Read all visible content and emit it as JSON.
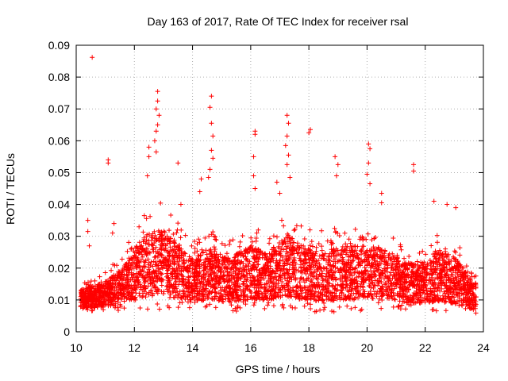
{
  "chart_data": {
    "type": "scatter",
    "title": "Day 163 of 2017, Rate Of TEC Index for receiver rsal",
    "xlabel": "GPS time / hours",
    "ylabel": "ROTI / TECUs",
    "xlim": [
      10,
      24
    ],
    "ylim": [
      0,
      0.09
    ],
    "xticks": [
      10,
      12,
      14,
      16,
      18,
      20,
      22,
      24
    ],
    "xtick_labels": [
      "10",
      "12",
      "14",
      "16",
      "18",
      "20",
      "22",
      "24"
    ],
    "yticks": [
      0,
      0.01,
      0.02,
      0.03,
      0.04,
      0.05,
      0.06,
      0.07,
      0.08,
      0.09
    ],
    "ytick_labels": [
      "0",
      "0.01",
      "0.02",
      "0.03",
      "0.04",
      "0.05",
      "0.06",
      "0.07",
      "0.08",
      "0.09"
    ],
    "grid": true,
    "marker": "+",
    "color": "#ff0000",
    "notable_points": [
      {
        "x": 10.55,
        "y": 0.0862
      },
      {
        "x": 10.4,
        "y": 0.035
      },
      {
        "x": 10.4,
        "y": 0.0315
      },
      {
        "x": 10.45,
        "y": 0.027
      },
      {
        "x": 11.1,
        "y": 0.054
      },
      {
        "x": 11.1,
        "y": 0.053
      },
      {
        "x": 11.3,
        "y": 0.034
      },
      {
        "x": 11.25,
        "y": 0.031
      },
      {
        "x": 12.5,
        "y": 0.058
      },
      {
        "x": 12.5,
        "y": 0.055
      },
      {
        "x": 12.45,
        "y": 0.049
      },
      {
        "x": 12.8,
        "y": 0.0755
      },
      {
        "x": 12.8,
        "y": 0.0725
      },
      {
        "x": 12.75,
        "y": 0.07
      },
      {
        "x": 12.85,
        "y": 0.068
      },
      {
        "x": 12.8,
        "y": 0.065
      },
      {
        "x": 12.75,
        "y": 0.063
      },
      {
        "x": 12.7,
        "y": 0.06
      },
      {
        "x": 12.75,
        "y": 0.0565
      },
      {
        "x": 13.5,
        "y": 0.053
      },
      {
        "x": 13.6,
        "y": 0.04
      },
      {
        "x": 14.3,
        "y": 0.048
      },
      {
        "x": 14.25,
        "y": 0.044
      },
      {
        "x": 14.65,
        "y": 0.074
      },
      {
        "x": 14.6,
        "y": 0.0705
      },
      {
        "x": 14.65,
        "y": 0.0655
      },
      {
        "x": 14.7,
        "y": 0.0615
      },
      {
        "x": 14.65,
        "y": 0.057
      },
      {
        "x": 14.7,
        "y": 0.0545
      },
      {
        "x": 14.6,
        "y": 0.051
      },
      {
        "x": 14.55,
        "y": 0.0485
      },
      {
        "x": 16.15,
        "y": 0.063
      },
      {
        "x": 16.15,
        "y": 0.062
      },
      {
        "x": 16.1,
        "y": 0.055
      },
      {
        "x": 16.1,
        "y": 0.049
      },
      {
        "x": 16.15,
        "y": 0.045
      },
      {
        "x": 16.9,
        "y": 0.047
      },
      {
        "x": 17.0,
        "y": 0.0435
      },
      {
        "x": 17.25,
        "y": 0.068
      },
      {
        "x": 17.3,
        "y": 0.0655
      },
      {
        "x": 17.25,
        "y": 0.0615
      },
      {
        "x": 17.2,
        "y": 0.0585
      },
      {
        "x": 17.3,
        "y": 0.0555
      },
      {
        "x": 17.25,
        "y": 0.0525
      },
      {
        "x": 17.35,
        "y": 0.0485
      },
      {
        "x": 18.05,
        "y": 0.0635
      },
      {
        "x": 18.0,
        "y": 0.0625
      },
      {
        "x": 18.9,
        "y": 0.055
      },
      {
        "x": 19.0,
        "y": 0.0525
      },
      {
        "x": 18.95,
        "y": 0.049
      },
      {
        "x": 20.05,
        "y": 0.059
      },
      {
        "x": 20.1,
        "y": 0.0575
      },
      {
        "x": 20.05,
        "y": 0.053
      },
      {
        "x": 20.0,
        "y": 0.0495
      },
      {
        "x": 20.1,
        "y": 0.0465
      },
      {
        "x": 20.5,
        "y": 0.0435
      },
      {
        "x": 20.5,
        "y": 0.0405
      },
      {
        "x": 21.6,
        "y": 0.0525
      },
      {
        "x": 21.6,
        "y": 0.0505
      },
      {
        "x": 22.3,
        "y": 0.041
      },
      {
        "x": 22.75,
        "y": 0.04
      },
      {
        "x": 23.05,
        "y": 0.039
      }
    ],
    "activity_envelope": [
      {
        "x": 10.2,
        "median": 0.0095,
        "spread": 0.006
      },
      {
        "x": 11.0,
        "median": 0.0105,
        "spread": 0.008
      },
      {
        "x": 11.6,
        "median": 0.013,
        "spread": 0.011
      },
      {
        "x": 12.2,
        "median": 0.017,
        "spread": 0.018
      },
      {
        "x": 12.8,
        "median": 0.019,
        "spread": 0.022
      },
      {
        "x": 13.4,
        "median": 0.017,
        "spread": 0.018
      },
      {
        "x": 14.0,
        "median": 0.014,
        "spread": 0.014
      },
      {
        "x": 14.6,
        "median": 0.016,
        "spread": 0.016
      },
      {
        "x": 15.2,
        "median": 0.014,
        "spread": 0.014
      },
      {
        "x": 16.0,
        "median": 0.016,
        "spread": 0.017
      },
      {
        "x": 16.6,
        "median": 0.015,
        "spread": 0.015
      },
      {
        "x": 17.2,
        "median": 0.018,
        "spread": 0.02
      },
      {
        "x": 17.8,
        "median": 0.016,
        "spread": 0.017
      },
      {
        "x": 18.6,
        "median": 0.015,
        "spread": 0.016
      },
      {
        "x": 19.2,
        "median": 0.016,
        "spread": 0.017
      },
      {
        "x": 20.0,
        "median": 0.016,
        "spread": 0.017
      },
      {
        "x": 20.6,
        "median": 0.016,
        "spread": 0.016
      },
      {
        "x": 21.2,
        "median": 0.014,
        "spread": 0.013
      },
      {
        "x": 21.8,
        "median": 0.013,
        "spread": 0.012
      },
      {
        "x": 22.4,
        "median": 0.015,
        "spread": 0.016
      },
      {
        "x": 23.0,
        "median": 0.014,
        "spread": 0.015
      },
      {
        "x": 23.7,
        "median": 0.01,
        "spread": 0.008
      }
    ],
    "x_range_of_data": [
      10.15,
      23.75
    ],
    "approx_point_count": 4200
  }
}
